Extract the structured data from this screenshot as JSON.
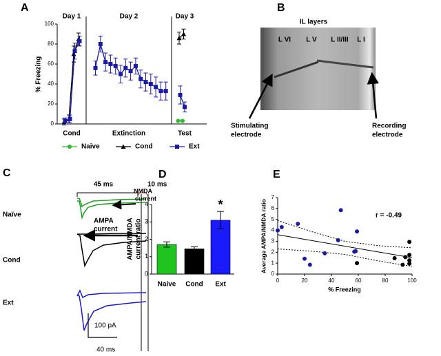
{
  "figure": {
    "letters": [
      "A",
      "B",
      "C",
      "D",
      "E"
    ],
    "panel_b": {
      "title": "IL  layers",
      "layers": [
        "L VI",
        "L V",
        "L II/III",
        "L I"
      ],
      "stimulating": [
        "Stimulating",
        "electrode"
      ],
      "recording": [
        "Recording",
        "electrode"
      ]
    },
    "panel_c": {
      "groups": [
        "Naïve",
        "Cond",
        "Ext"
      ],
      "interval_long": "45 ms",
      "interval_short": "10 ms",
      "nmda": [
        "NMDA",
        "current"
      ],
      "ampa": [
        "AMPA",
        "current"
      ],
      "scale_y": "100 pA",
      "scale_x": "40 ms"
    }
  },
  "chart_data": [
    {
      "type": "line",
      "y_label": "% Freezing",
      "sections": [
        {
          "day": "Day 1",
          "label": "Cond"
        },
        {
          "day": "Day 2",
          "label": "Extinction"
        },
        {
          "day": "Day 3",
          "label": "Test"
        }
      ],
      "categories": [
        null,
        null,
        null,
        null,
        null,
        null,
        null,
        null,
        null,
        null,
        null,
        null,
        null,
        null,
        null,
        null,
        null,
        null,
        null,
        null,
        null
      ],
      "ylim": [
        0,
        100
      ],
      "yticks": [
        0,
        20,
        40,
        60,
        80,
        100
      ],
      "series": [
        {
          "name": "Naive",
          "color": "#2db82d",
          "marker": "circle",
          "values": [
            null,
            null,
            null,
            null,
            null,
            null,
            null,
            null,
            null,
            null,
            null,
            null,
            null,
            null,
            null,
            null,
            null,
            null,
            null,
            3,
            3
          ]
        },
        {
          "name": "Cond",
          "color": "#000000",
          "marker": "triangle",
          "values": [
            2,
            5,
            70,
            85,
            null,
            null,
            null,
            null,
            null,
            null,
            null,
            null,
            null,
            null,
            null,
            null,
            null,
            null,
            null,
            86,
            90
          ],
          "errors": [
            3,
            4,
            8,
            6,
            null,
            null,
            null,
            null,
            null,
            null,
            null,
            null,
            null,
            null,
            null,
            null,
            null,
            null,
            null,
            6,
            5
          ]
        },
        {
          "name": "Ext",
          "color": "#1a1aa6",
          "marker": "square",
          "values": [
            3,
            5,
            73,
            83,
            56,
            80,
            62,
            60,
            58,
            50,
            56,
            53,
            58,
            45,
            42,
            40,
            37,
            33,
            33,
            29,
            17
          ],
          "errors": [
            3,
            4,
            8,
            5,
            7,
            8,
            9,
            9,
            8,
            9,
            9,
            9,
            8,
            9,
            9,
            10,
            10,
            9,
            9,
            9,
            5
          ]
        }
      ],
      "legend": "bottom"
    },
    {
      "type": "bar",
      "y_label": [
        "AMPA/NMDA",
        "current ratio"
      ],
      "categories": [
        "Naive",
        "Cond",
        "Ext"
      ],
      "values": [
        1.7,
        1.45,
        3.1
      ],
      "errors": [
        0.15,
        0.12,
        0.5
      ],
      "colors": [
        "#1fc41f",
        "#000000",
        "#1a1aff"
      ],
      "ylim": [
        0,
        4
      ],
      "yticks": [
        0,
        1,
        2,
        3,
        4
      ],
      "annotation": "*"
    },
    {
      "type": "scatter",
      "x_label": "% Freezing",
      "y_label": "Average AMPA/NMDA ratio",
      "annotation": "r = -0.49",
      "xlim": [
        0,
        100
      ],
      "xticks": [
        0,
        20,
        40,
        60,
        80,
        100
      ],
      "ylim": [
        0,
        7
      ],
      "yticks": [
        0,
        1,
        2,
        3,
        4,
        5,
        6,
        7
      ],
      "series": [
        {
          "color": "#1a1aa6",
          "x": [
            0,
            3,
            15,
            20,
            24,
            35,
            45,
            47,
            57,
            58,
            59
          ],
          "values": [
            4,
            4.3,
            4.6,
            1.4,
            0.85,
            1.9,
            3.1,
            5.85,
            2.05,
            2.1,
            3.9
          ]
        },
        {
          "color": "#000000",
          "x": [
            59,
            87,
            93,
            95,
            98,
            98,
            98,
            98
          ],
          "values": [
            1.0,
            1.45,
            0.85,
            1.55,
            2.95,
            1.75,
            1.25,
            0.95
          ]
        }
      ],
      "fit": {
        "x": [
          0,
          100
        ],
        "values": [
          3.6,
          1.5
        ]
      },
      "ci": {
        "x": [
          0,
          25,
          50,
          75,
          100
        ],
        "upper": [
          4.9,
          3.9,
          3.0,
          2.6,
          2.4
        ],
        "lower": [
          2.3,
          2.1,
          1.8,
          1.2,
          0.7
        ]
      }
    }
  ]
}
